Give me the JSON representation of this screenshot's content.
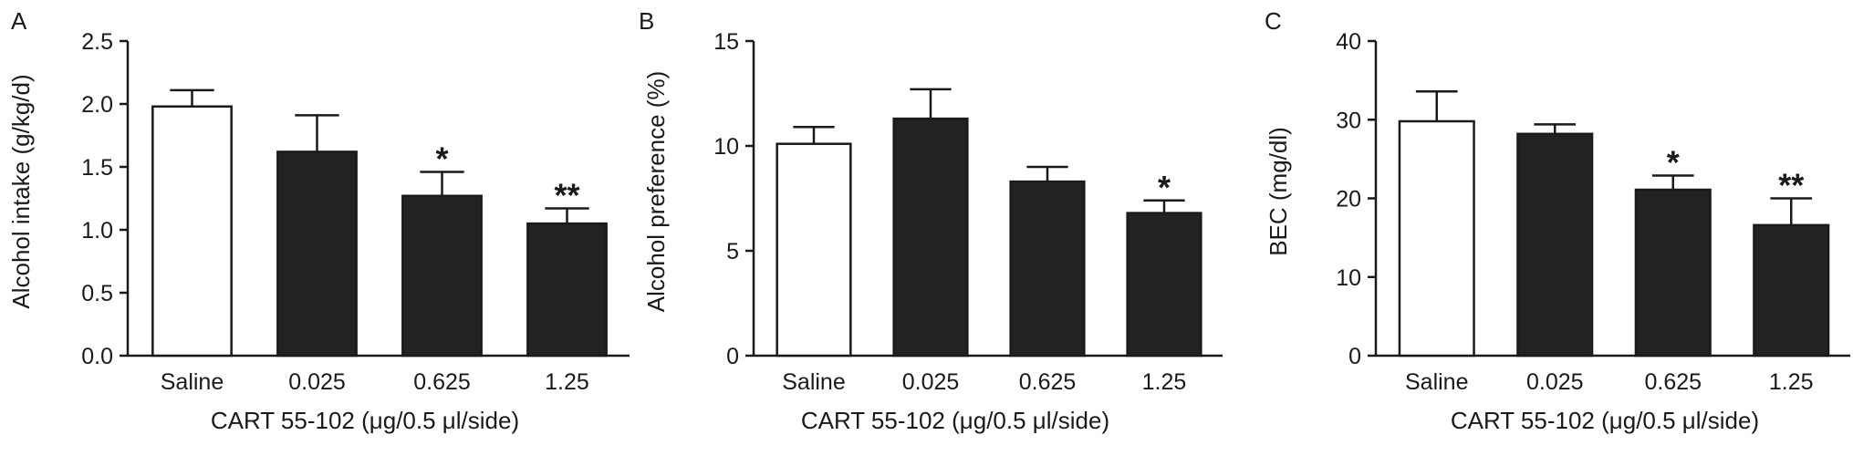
{
  "chart_data": [
    {
      "type": "bar",
      "panel_label": "A",
      "categories": [
        "Saline",
        "0.025",
        "0.625",
        "1.25"
      ],
      "values": [
        1.98,
        1.62,
        1.27,
        1.05
      ],
      "errors": [
        0.13,
        0.29,
        0.19,
        0.12
      ],
      "significance": [
        "",
        "",
        "*",
        "**"
      ],
      "bar_colors": [
        "#ffffff",
        "#222222",
        "#222222",
        "#222222"
      ],
      "ylabel": "Alcohol intake (g/kg/d)",
      "xlabel": "CART 55-102 (μg/0.5 μl/side)",
      "ylim": [
        0,
        2.5
      ],
      "yticks": [
        0.0,
        0.5,
        1.0,
        1.5,
        2.0,
        2.5
      ],
      "ytick_labels": [
        "0.0",
        "0.5",
        "1.0",
        "1.5",
        "2.0",
        "2.5"
      ]
    },
    {
      "type": "bar",
      "panel_label": "B",
      "categories": [
        "Saline",
        "0.025",
        "0.625",
        "1.25"
      ],
      "values": [
        10.1,
        11.3,
        8.3,
        6.8
      ],
      "errors": [
        0.8,
        1.4,
        0.7,
        0.6
      ],
      "significance": [
        "",
        "",
        "",
        "*"
      ],
      "bar_colors": [
        "#ffffff",
        "#222222",
        "#222222",
        "#222222"
      ],
      "ylabel": "Alcohol preference (%)",
      "xlabel": "CART 55-102 (μg/0.5 μl/side)",
      "ylim": [
        0,
        15
      ],
      "yticks": [
        0,
        5,
        10,
        15
      ],
      "ytick_labels": [
        "0",
        "5",
        "10",
        "15"
      ]
    },
    {
      "type": "bar",
      "panel_label": "C",
      "categories": [
        "Saline",
        "0.025",
        "0.625",
        "1.25"
      ],
      "values": [
        29.8,
        28.2,
        21.1,
        16.6
      ],
      "errors": [
        3.8,
        1.2,
        1.8,
        3.4
      ],
      "significance": [
        "",
        "",
        "*",
        "**"
      ],
      "bar_colors": [
        "#ffffff",
        "#222222",
        "#222222",
        "#222222"
      ],
      "ylabel": "BEC (mg/dl)",
      "xlabel": "CART 55-102 (μg/0.5 μl/side)",
      "ylim": [
        0,
        40
      ],
      "yticks": [
        0,
        10,
        20,
        30,
        40
      ],
      "ytick_labels": [
        "0",
        "10",
        "20",
        "30",
        "40"
      ]
    }
  ]
}
